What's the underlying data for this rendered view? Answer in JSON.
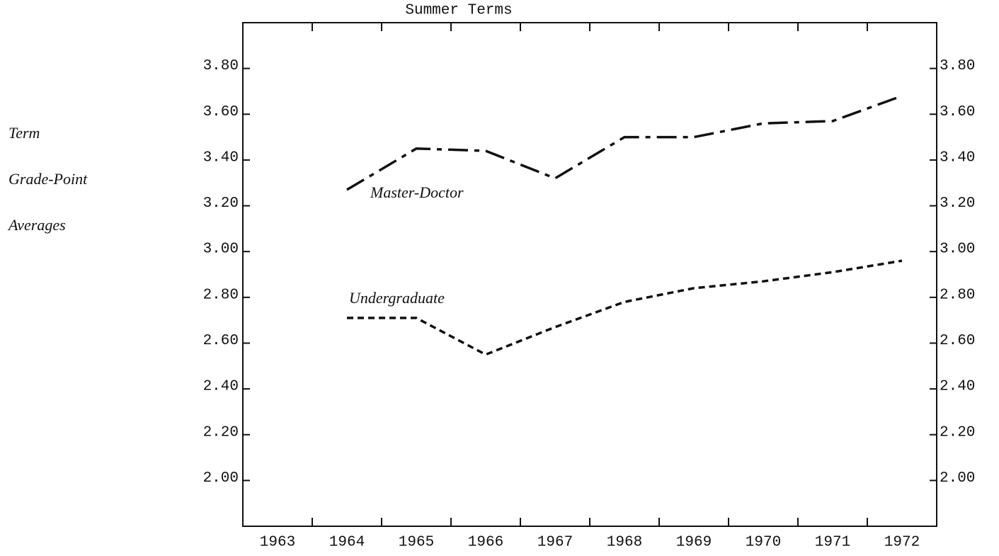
{
  "chart_data": {
    "type": "line",
    "title": "Summer Terms",
    "y_label": [
      "Term",
      "Grade-Point",
      "Averages"
    ],
    "categories": [
      "1963",
      "1964",
      "1965",
      "1966",
      "1967",
      "1968",
      "1969",
      "1970",
      "1971",
      "1972"
    ],
    "series": [
      {
        "name": "Master-Doctor",
        "color": "#111111",
        "dash": "28 9 7 9",
        "values": [
          null,
          3.27,
          3.45,
          3.44,
          3.32,
          3.5,
          3.5,
          3.56,
          3.57,
          3.68
        ]
      },
      {
        "name": "Undergraduate",
        "color": "#111111",
        "dash": "9 6",
        "values": [
          null,
          2.71,
          2.71,
          2.55,
          2.67,
          2.78,
          2.84,
          2.87,
          2.91,
          2.96
        ]
      }
    ],
    "ylim": [
      1.8,
      4.0
    ],
    "yticks": [
      {
        "value": 2.0,
        "label": "2.00"
      },
      {
        "value": 2.2,
        "label": "2.20"
      },
      {
        "value": 2.4,
        "label": "2.40"
      },
      {
        "value": 2.6,
        "label": "2.60"
      },
      {
        "value": 2.8,
        "label": "2.80"
      },
      {
        "value": 3.0,
        "label": "3.00"
      },
      {
        "value": 3.2,
        "label": "3.20"
      },
      {
        "value": 3.4,
        "label": "3.40"
      },
      {
        "value": 3.6,
        "label": "3.60"
      },
      {
        "value": 3.8,
        "label": "3.80"
      }
    ],
    "y2lim": [
      1.8,
      4.0
    ],
    "y2ticks": [
      {
        "value": 2.0,
        "label": "2.00"
      },
      {
        "value": 2.2,
        "label": "2.20"
      },
      {
        "value": 2.4,
        "label": "2.40"
      },
      {
        "value": 2.6,
        "label": "2.60"
      },
      {
        "value": 2.8,
        "label": "2.80"
      },
      {
        "value": 3.0,
        "label": "3.00"
      },
      {
        "value": 3.2,
        "label": "3.20"
      },
      {
        "value": 3.4,
        "label": "3.40"
      },
      {
        "value": 3.6,
        "label": "3.60"
      },
      {
        "value": 3.8,
        "label": "3.80"
      }
    ],
    "grid": false
  }
}
